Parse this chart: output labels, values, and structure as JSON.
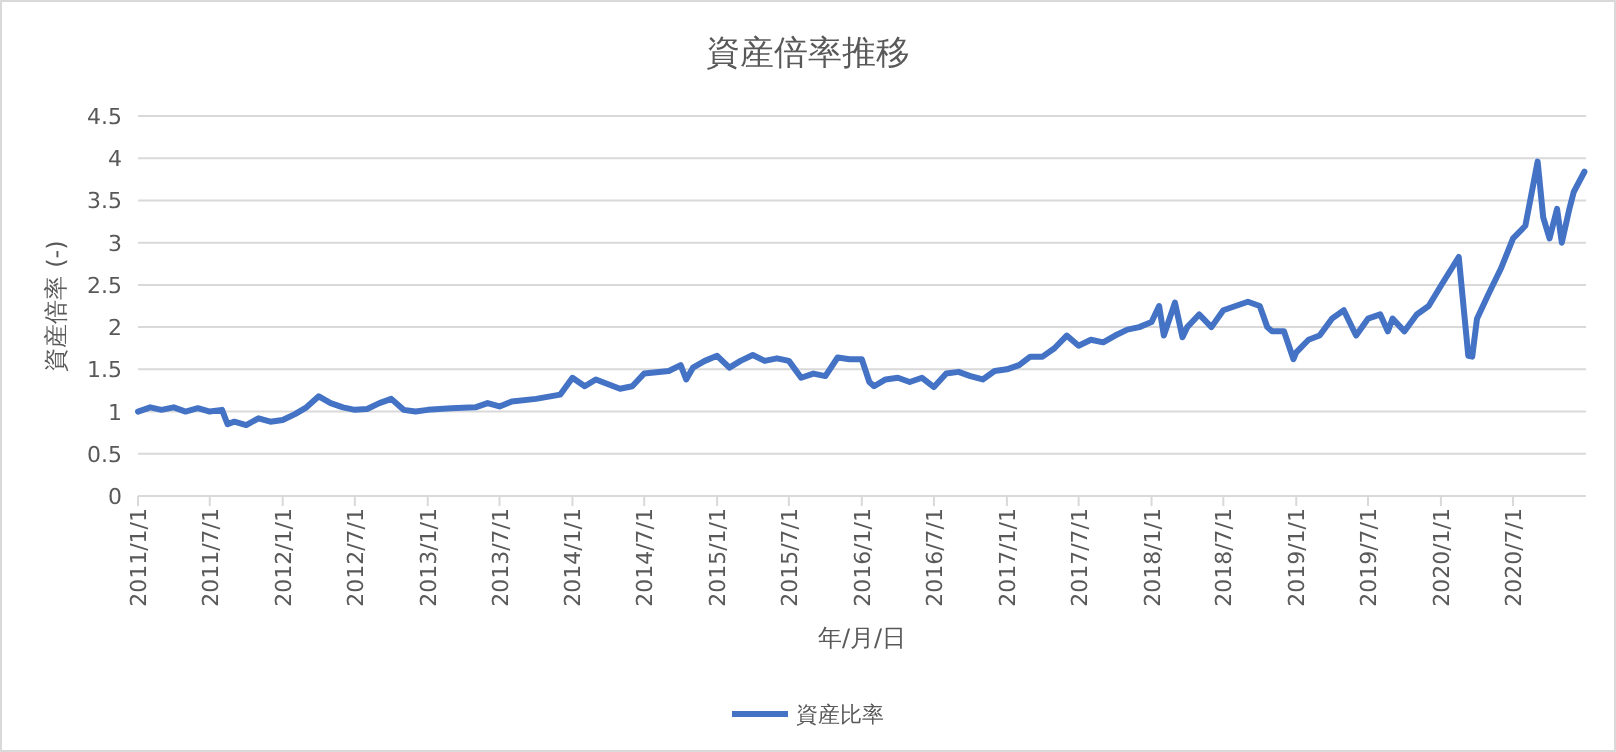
{
  "chart_data": {
    "type": "line",
    "title": "資産倍率推移",
    "xlabel": "年/月/日",
    "ylabel": "資産倍率 (-)",
    "xlim": [
      "2011-01-01",
      "2021-01-01"
    ],
    "xticks": [
      {
        "value": "2011-01-01",
        "label": "2011/1/1"
      },
      {
        "value": "2011-07-01",
        "label": "2011/7/1"
      },
      {
        "value": "2012-01-01",
        "label": "2012/1/1"
      },
      {
        "value": "2012-07-01",
        "label": "2012/7/1"
      },
      {
        "value": "2013-01-01",
        "label": "2013/1/1"
      },
      {
        "value": "2013-07-01",
        "label": "2013/7/1"
      },
      {
        "value": "2014-01-01",
        "label": "2014/1/1"
      },
      {
        "value": "2014-07-01",
        "label": "2014/7/1"
      },
      {
        "value": "2015-01-01",
        "label": "2015/1/1"
      },
      {
        "value": "2015-07-01",
        "label": "2015/7/1"
      },
      {
        "value": "2016-01-01",
        "label": "2016/1/1"
      },
      {
        "value": "2016-07-01",
        "label": "2016/7/1"
      },
      {
        "value": "2017-01-01",
        "label": "2017/1/1"
      },
      {
        "value": "2017-07-01",
        "label": "2017/7/1"
      },
      {
        "value": "2018-01-01",
        "label": "2018/1/1"
      },
      {
        "value": "2018-07-01",
        "label": "2018/7/1"
      },
      {
        "value": "2019-01-01",
        "label": "2019/1/1"
      },
      {
        "value": "2019-07-01",
        "label": "2019/7/1"
      },
      {
        "value": "2020-01-01",
        "label": "2020/1/1"
      },
      {
        "value": "2020-07-01",
        "label": "2020/7/1"
      }
    ],
    "ylim": [
      0,
      4.5
    ],
    "yticks": [
      0,
      0.5,
      1,
      1.5,
      2,
      2.5,
      3,
      3.5,
      4,
      4.5
    ],
    "grid": "y",
    "legend": "bottom",
    "marker": "none",
    "line_style": "solid",
    "x": [
      "2011-01-01",
      "2011-02-01",
      "2011-03-01",
      "2011-04-01",
      "2011-05-01",
      "2011-06-01",
      "2011-07-01",
      "2011-08-01",
      "2011-08-15",
      "2011-09-01",
      "2011-10-01",
      "2011-11-01",
      "2011-12-01",
      "2012-01-01",
      "2012-02-01",
      "2012-03-01",
      "2012-04-01",
      "2012-05-01",
      "2012-06-01",
      "2012-07-01",
      "2012-08-01",
      "2012-09-01",
      "2012-10-01",
      "2012-11-01",
      "2012-12-01",
      "2013-01-01",
      "2013-03-01",
      "2013-05-01",
      "2013-06-01",
      "2013-07-01",
      "2013-08-01",
      "2013-10-01",
      "2013-12-01",
      "2014-01-01",
      "2014-02-01",
      "2014-03-01",
      "2014-05-01",
      "2014-06-01",
      "2014-07-01",
      "2014-09-01",
      "2014-10-01",
      "2014-10-15",
      "2014-11-01",
      "2014-12-01",
      "2015-01-01",
      "2015-02-01",
      "2015-03-01",
      "2015-04-01",
      "2015-05-01",
      "2015-06-01",
      "2015-07-01",
      "2015-08-01",
      "2015-09-01",
      "2015-10-01",
      "2015-11-01",
      "2015-12-01",
      "2016-01-01",
      "2016-01-20",
      "2016-02-01",
      "2016-03-01",
      "2016-04-01",
      "2016-05-01",
      "2016-06-01",
      "2016-07-01",
      "2016-08-01",
      "2016-09-01",
      "2016-10-01",
      "2016-11-01",
      "2016-12-01",
      "2017-01-01",
      "2017-02-01",
      "2017-03-01",
      "2017-04-01",
      "2017-05-01",
      "2017-06-01",
      "2017-07-01",
      "2017-08-01",
      "2017-09-01",
      "2017-10-01",
      "2017-11-01",
      "2017-12-01",
      "2018-01-01",
      "2018-01-20",
      "2018-02-01",
      "2018-03-01",
      "2018-03-20",
      "2018-04-01",
      "2018-05-01",
      "2018-06-01",
      "2018-07-01",
      "2018-08-01",
      "2018-09-01",
      "2018-10-01",
      "2018-10-20",
      "2018-11-01",
      "2018-12-01",
      "2018-12-25",
      "2019-01-01",
      "2019-02-01",
      "2019-03-01",
      "2019-04-01",
      "2019-05-01",
      "2019-06-01",
      "2019-07-01",
      "2019-08-01",
      "2019-08-20",
      "2019-09-01",
      "2019-10-01",
      "2019-11-01",
      "2019-12-01",
      "2020-01-01",
      "2020-02-15",
      "2020-03-10",
      "2020-03-20",
      "2020-04-01",
      "2020-05-01",
      "2020-06-01",
      "2020-07-01",
      "2020-08-01",
      "2020-09-01",
      "2020-09-15",
      "2020-10-01",
      "2020-10-20",
      "2020-11-01",
      "2020-11-20",
      "2020-12-01",
      "2020-12-28"
    ],
    "series": [
      {
        "name": "資産比率",
        "color": "#4472c4",
        "values": [
          1.0,
          1.05,
          1.02,
          1.05,
          1.0,
          1.04,
          1.0,
          1.02,
          0.85,
          0.88,
          0.84,
          0.92,
          0.88,
          0.9,
          0.97,
          1.05,
          1.18,
          1.1,
          1.05,
          1.02,
          1.03,
          1.1,
          1.15,
          1.02,
          1.0,
          1.02,
          1.04,
          1.05,
          1.1,
          1.06,
          1.12,
          1.15,
          1.2,
          1.4,
          1.3,
          1.38,
          1.27,
          1.3,
          1.45,
          1.48,
          1.55,
          1.38,
          1.52,
          1.6,
          1.66,
          1.52,
          1.6,
          1.67,
          1.6,
          1.63,
          1.6,
          1.4,
          1.45,
          1.42,
          1.64,
          1.62,
          1.62,
          1.35,
          1.3,
          1.38,
          1.4,
          1.35,
          1.4,
          1.29,
          1.45,
          1.47,
          1.42,
          1.38,
          1.48,
          1.5,
          1.55,
          1.65,
          1.65,
          1.75,
          1.9,
          1.78,
          1.85,
          1.82,
          1.9,
          1.97,
          2.0,
          2.06,
          2.25,
          1.9,
          2.29,
          1.88,
          2.0,
          2.15,
          2.0,
          2.2,
          2.25,
          2.3,
          2.25,
          2.0,
          1.95,
          1.95,
          1.62,
          1.7,
          1.85,
          1.9,
          2.1,
          2.2,
          1.9,
          2.1,
          2.15,
          1.95,
          2.1,
          1.95,
          2.15,
          2.25,
          2.49,
          2.83,
          1.66,
          1.65,
          2.1,
          2.4,
          2.7,
          3.05,
          3.2,
          3.96,
          3.3,
          3.05,
          3.4,
          3.0,
          3.4,
          3.6,
          3.84
        ]
      }
    ]
  }
}
